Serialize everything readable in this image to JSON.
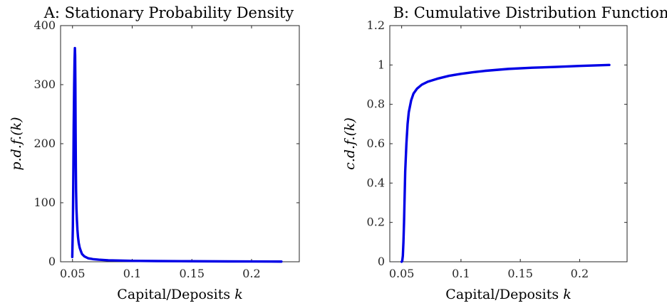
{
  "chart_data": [
    {
      "type": "line",
      "title": "A: Stationary Probability Density",
      "xlabel": "Capital/Deposits",
      "xlabel_var": "k",
      "ylabel": "p.d.f.(k)",
      "xlim": [
        0.04,
        0.24
      ],
      "ylim": [
        0,
        400
      ],
      "xticks": [
        0.05,
        0.1,
        0.15,
        0.2
      ],
      "xtick_labels": [
        "0.05",
        "0.1",
        "0.15",
        "0.2"
      ],
      "yticks": [
        0,
        100,
        200,
        300,
        400
      ],
      "ytick_labels": [
        "0",
        "100",
        "200",
        "300",
        "400"
      ],
      "grid": false,
      "color": "#0000e6",
      "series": [
        {
          "x": [
            0.0498,
            0.0503,
            0.0507,
            0.051,
            0.0514,
            0.0517,
            0.052,
            0.0522,
            0.0524,
            0.0526,
            0.0528,
            0.053,
            0.0533,
            0.0537,
            0.0541,
            0.0546,
            0.0552,
            0.056,
            0.057,
            0.058,
            0.06,
            0.063,
            0.067,
            0.072,
            0.08,
            0.09,
            0.1,
            0.12,
            0.15,
            0.18,
            0.2,
            0.225
          ],
          "y": [
            8,
            60,
            150,
            230,
            300,
            340,
            362,
            350,
            300,
            220,
            160,
            120,
            90,
            70,
            55,
            42,
            32,
            24,
            18,
            13,
            9,
            6,
            4.5,
            3.5,
            2.5,
            2,
            1.6,
            1.2,
            0.9,
            0.6,
            0.5,
            0.3
          ]
        }
      ]
    },
    {
      "type": "line",
      "title": "B: Cumulative Distribution Function",
      "xlabel": "Capital/Deposits",
      "xlabel_var": "k",
      "ylabel": "c.d.f.(k)",
      "xlim": [
        0.04,
        0.24
      ],
      "ylim": [
        0,
        1.2
      ],
      "xticks": [
        0.05,
        0.1,
        0.15,
        0.2
      ],
      "xtick_labels": [
        "0.05",
        "0.1",
        "0.15",
        "0.2"
      ],
      "yticks": [
        0,
        0.2,
        0.4,
        0.6,
        0.8,
        1,
        1.2
      ],
      "ytick_labels": [
        "0",
        "0.2",
        "0.4",
        "0.6",
        "0.8",
        "1",
        "1.2"
      ],
      "grid": false,
      "color": "#0000e6",
      "series": [
        {
          "x": [
            0.05,
            0.0505,
            0.051,
            0.0515,
            0.052,
            0.0525,
            0.053,
            0.054,
            0.055,
            0.056,
            0.058,
            0.06,
            0.063,
            0.067,
            0.072,
            0.08,
            0.09,
            0.1,
            0.11,
            0.12,
            0.14,
            0.16,
            0.18,
            0.2,
            0.225
          ],
          "y": [
            0,
            0.005,
            0.03,
            0.1,
            0.2,
            0.33,
            0.46,
            0.6,
            0.7,
            0.76,
            0.82,
            0.855,
            0.88,
            0.9,
            0.915,
            0.93,
            0.945,
            0.955,
            0.963,
            0.97,
            0.98,
            0.986,
            0.99,
            0.995,
            1.0
          ]
        }
      ]
    }
  ]
}
